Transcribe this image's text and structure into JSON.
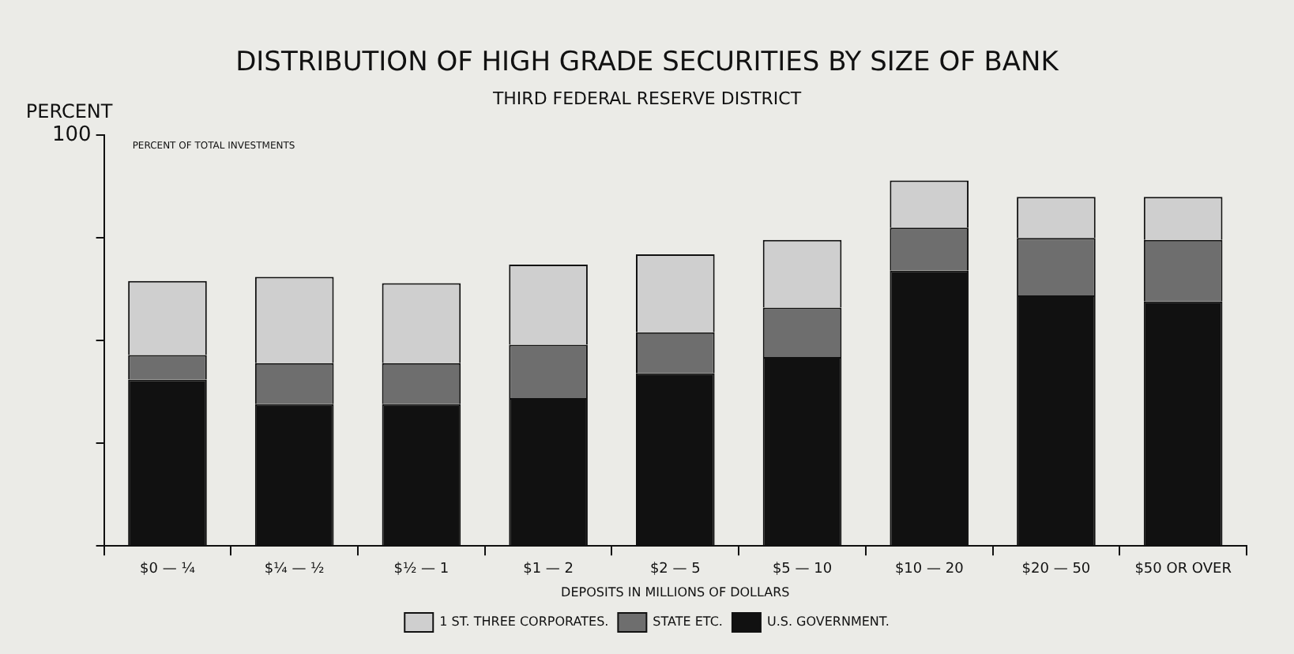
{
  "chart_data": {
    "type": "bar",
    "title": "DISTRIBUTION OF HIGH GRADE SECURITIES BY SIZE OF BANK",
    "subtitle": "THIRD FEDERAL RESERVE DISTRICT",
    "ylabel": "PERCENT",
    "xlabel": "DEPOSITS IN MILLIONS OF DOLLARS",
    "annotations": [
      "PERCENT OF TOTAL INVESTMENTS"
    ],
    "categories": [
      "$0 — ¼",
      "$¼ — ½",
      "$½ — 1",
      "$1 — 2",
      "$2 — 5",
      "$5 — 10",
      "$10 — 20",
      "$20 — 50",
      "$50 OR OVER"
    ],
    "stacked": true,
    "series": [
      {
        "name": "U.S. GOVERNMENT.",
        "color": "#111111",
        "values": [
          40.5,
          34.5,
          34.5,
          36,
          42,
          46,
          67,
          61,
          59.5
        ]
      },
      {
        "name": "STATE ETC.",
        "color": "#6e6e6e",
        "values": [
          6,
          10,
          10,
          13,
          10,
          12,
          10.5,
          14,
          15
        ]
      },
      {
        "name": "1 ST. THREE CORPORATES.",
        "color": "#cfcfcf",
        "values": [
          18,
          21,
          19.5,
          19.5,
          19,
          16.5,
          11.5,
          10,
          10.5
        ]
      }
    ],
    "ylim": [
      0,
      100
    ],
    "yticks": [
      0,
      {
        "value": 25,
        "label": null
      },
      {
        "value": 50,
        "label": null
      },
      {
        "value": 75,
        "label": null
      },
      100
    ],
    "grid": false,
    "legend": "bottom"
  }
}
